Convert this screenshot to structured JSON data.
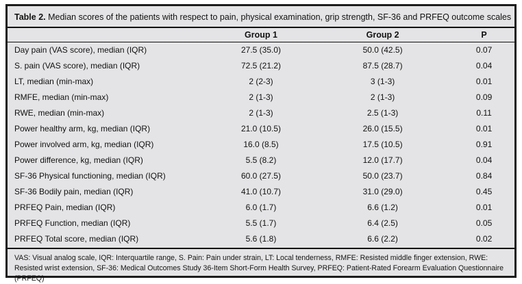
{
  "colors": {
    "page_background": "#ffffff",
    "panel_background": "#e4e4e6",
    "border": "#1c1c1c",
    "text": "#111111"
  },
  "table": {
    "title_prefix": "Table 2.",
    "title_rest": " Median scores of the patients with respect to pain, physical examination, grip strength, SF-36 and PRFEQ outcome scales",
    "columns": {
      "label": "",
      "group1": "Group 1",
      "group2": "Group 2",
      "p": "P"
    },
    "rows": [
      {
        "label": "Day pain (VAS score), median (IQR)",
        "group1": "27.5 (35.0)",
        "group2": "50.0 (42.5)",
        "p": "0.07"
      },
      {
        "label": "S. pain (VAS score), median (IQR)",
        "group1": "72.5 (21.2)",
        "group2": "87.5 (28.7)",
        "p": "0.04"
      },
      {
        "label": "LT, median (min-max)",
        "group1": "2 (2-3)",
        "group2": "3 (1-3)",
        "p": "0.01"
      },
      {
        "label": "RMFE, median (min-max)",
        "group1": "2 (1-3)",
        "group2": "2 (1-3)",
        "p": "0.09"
      },
      {
        "label": "RWE, median (min-max)",
        "group1": "2 (1-3)",
        "group2": "2.5 (1-3)",
        "p": "0.11"
      },
      {
        "label": "Power healthy arm, kg, median (IQR)",
        "group1": "21.0 (10.5)",
        "group2": "26.0 (15.5)",
        "p": "0.01"
      },
      {
        "label": "Power involved arm, kg, median (IQR)",
        "group1": "16.0 (8.5)",
        "group2": "17.5 (10.5)",
        "p": "0.91"
      },
      {
        "label": "Power difference, kg, median (IQR)",
        "group1": "5.5 (8.2)",
        "group2": "12.0 (17.7)",
        "p": "0.04"
      },
      {
        "label": "SF-36 Physical functioning, median (IQR)",
        "group1": "60.0 (27.5)",
        "group2": "50.0 (23.7)",
        "p": "0.84"
      },
      {
        "label": "SF-36 Bodily pain, median (IQR)",
        "group1": "41.0 (10.7)",
        "group2": "31.0 (29.0)",
        "p": "0.45"
      },
      {
        "label": "PRFEQ Pain, median (IQR)",
        "group1": "6.0 (1.7)",
        "group2": "6.6 (1.2)",
        "p": "0.01"
      },
      {
        "label": "PRFEQ Function, median (IQR)",
        "group1": "5.5 (1.7)",
        "group2": "6.4 (2.5)",
        "p": "0.05"
      },
      {
        "label": "PRFEQ Total score, median (IQR)",
        "group1": "5.6 (1.8)",
        "group2": "6.6 (2.2)",
        "p": "0.02"
      }
    ],
    "footnote": "VAS: Visual analog scale, IQR: Interquartile range, S. Pain: Pain under strain, LT: Local tenderness, RMFE: Resisted middle finger extension, RWE: Resisted wrist extension, SF-36: Medical Outcomes Study 36-Item Short-Form Health Survey, PRFEQ: Patient-Rated Forearm Evaluation Questionnaire (PRFEQ)"
  }
}
